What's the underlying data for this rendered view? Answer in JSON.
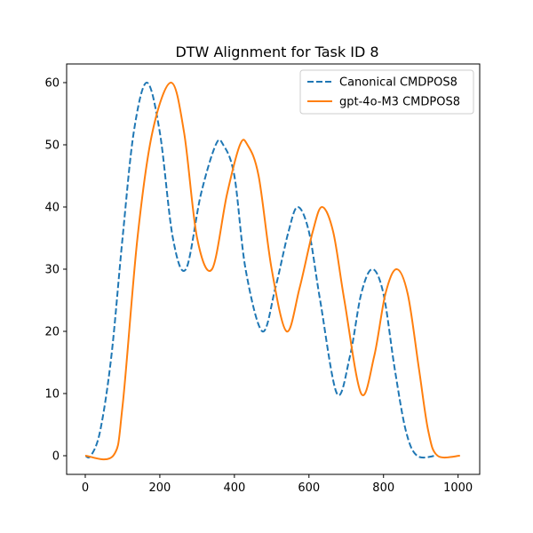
{
  "chart_data": {
    "type": "line",
    "title": "DTW Alignment for Task ID 8",
    "xlabel": "",
    "ylabel": "",
    "xlim": [
      -50,
      1058
    ],
    "ylim": [
      -3,
      63
    ],
    "xticks": [
      0,
      200,
      400,
      600,
      800,
      1000
    ],
    "yticks": [
      0,
      10,
      20,
      30,
      40,
      50,
      60
    ],
    "grid": false,
    "legend_position": "upper-right",
    "series": [
      {
        "name": "Canonical CMDPOS8",
        "color": "#1f77b4",
        "style": "dashed",
        "points": [
          [
            0,
            0
          ],
          [
            15,
            0
          ],
          [
            40,
            4
          ],
          [
            70,
            16
          ],
          [
            100,
            35
          ],
          [
            130,
            52
          ],
          [
            165,
            60
          ],
          [
            200,
            52
          ],
          [
            235,
            35
          ],
          [
            270,
            30
          ],
          [
            310,
            42
          ],
          [
            350,
            50
          ],
          [
            370,
            50
          ],
          [
            400,
            45
          ],
          [
            430,
            30
          ],
          [
            475,
            20
          ],
          [
            510,
            27
          ],
          [
            545,
            36
          ],
          [
            570,
            40
          ],
          [
            600,
            36
          ],
          [
            630,
            25
          ],
          [
            675,
            10
          ],
          [
            710,
            16
          ],
          [
            740,
            26
          ],
          [
            770,
            30
          ],
          [
            800,
            26
          ],
          [
            830,
            14
          ],
          [
            860,
            4
          ],
          [
            890,
            0
          ],
          [
            940,
            0
          ]
        ]
      },
      {
        "name": "gpt-4o-M3 CMDPOS8",
        "color": "#ff7f0e",
        "style": "solid",
        "points": [
          [
            0,
            0
          ],
          [
            75,
            0
          ],
          [
            100,
            8
          ],
          [
            140,
            35
          ],
          [
            180,
            52
          ],
          [
            230,
            60
          ],
          [
            265,
            52
          ],
          [
            300,
            35
          ],
          [
            340,
            30
          ],
          [
            380,
            42
          ],
          [
            415,
            50
          ],
          [
            435,
            50
          ],
          [
            465,
            45
          ],
          [
            500,
            30
          ],
          [
            540,
            20
          ],
          [
            575,
            27
          ],
          [
            610,
            36
          ],
          [
            635,
            40
          ],
          [
            665,
            36
          ],
          [
            695,
            25
          ],
          [
            740,
            10
          ],
          [
            775,
            16
          ],
          [
            805,
            26
          ],
          [
            835,
            30
          ],
          [
            865,
            26
          ],
          [
            895,
            14
          ],
          [
            920,
            4
          ],
          [
            945,
            0
          ],
          [
            1005,
            0
          ]
        ]
      }
    ]
  }
}
